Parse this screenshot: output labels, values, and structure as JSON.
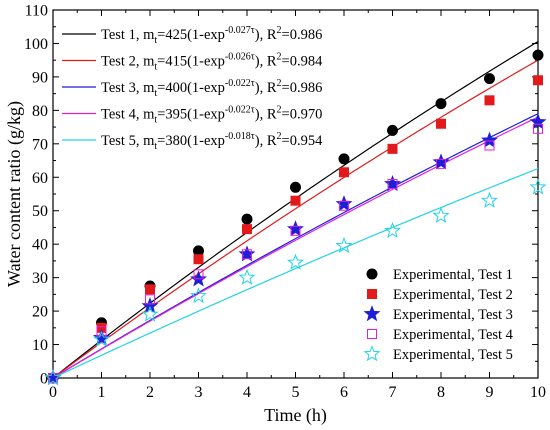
{
  "chart_data": {
    "type": "scatter",
    "xlabel": "Time (h)",
    "ylabel": "Water content ratio (g/kg)",
    "xlim": [
      0,
      10
    ],
    "ylim": [
      0,
      110
    ],
    "x_ticks": [
      "0",
      "1",
      "2",
      "3",
      "4",
      "5",
      "6",
      "7",
      "8",
      "9",
      "10"
    ],
    "y_ticks": [
      "0",
      "10",
      "20",
      "30",
      "40",
      "50",
      "60",
      "70",
      "80",
      "90",
      "100",
      "110"
    ],
    "grid": false,
    "fit_legend_position": "top-left",
    "marker_legend_position": "bottom-right",
    "fit_lines": [
      {
        "label_main": "Test 1, m",
        "label_sub": "t",
        "label_eq": "=425(1-exp",
        "label_exp": "-0.027τ",
        "label_r2": "), R",
        "label_r2sup": "2",
        "label_r2val": "=0.986",
        "color": "#000000",
        "A": 425,
        "k": 0.027
      },
      {
        "label_main": "Test 2, m",
        "label_sub": "t",
        "label_eq": "=415(1-exp",
        "label_exp": "-0.026τ",
        "label_r2": "), R",
        "label_r2sup": "2",
        "label_r2val": "=0.984",
        "color": "#e31a1c",
        "A": 415,
        "k": 0.026
      },
      {
        "label_main": "Test 3, m",
        "label_sub": "t",
        "label_eq": "=400(1-exp",
        "label_exp": "-0.022τ",
        "label_r2": "), R",
        "label_r2sup": "2",
        "label_r2val": "=0.986",
        "color": "#1f1fd6",
        "A": 400,
        "k": 0.022
      },
      {
        "label_main": "Test 4, m",
        "label_sub": "t",
        "label_eq": "=395(1-exp",
        "label_exp": "-0.022τ",
        "label_r2": "), R",
        "label_r2sup": "2",
        "label_r2val": "=0.970",
        "color": "#e020e0",
        "A": 395,
        "k": 0.022
      },
      {
        "label_main": "Test 5, m",
        "label_sub": "t",
        "label_eq": "=380(1-exp",
        "label_exp": "-0.018τ",
        "label_r2": "), R",
        "label_r2sup": "2",
        "label_r2val": "=0.954",
        "color": "#22d3e6",
        "A": 380,
        "k": 0.018
      }
    ],
    "x": [
      0,
      1,
      2,
      3,
      4,
      5,
      6,
      7,
      8,
      9,
      10
    ],
    "series": [
      {
        "name": "Experimental, Test 1",
        "marker": "circle",
        "color": "#000000",
        "filled": true,
        "values": [
          0,
          16.5,
          27.5,
          38,
          47.5,
          57,
          65.5,
          74,
          82,
          89.5,
          96.5
        ]
      },
      {
        "name": "Experimental, Test 2",
        "marker": "square",
        "color": "#e31a1c",
        "filled": true,
        "values": [
          0,
          15,
          26.5,
          35.5,
          44.5,
          53,
          61.5,
          68.5,
          76,
          83,
          89
        ]
      },
      {
        "name": "Experimental, Test 3",
        "marker": "star",
        "color": "#1f1fd6",
        "filled": true,
        "values": [
          0,
          12,
          21.5,
          29.5,
          37,
          44.5,
          52,
          58,
          64.5,
          71,
          76.5
        ]
      },
      {
        "name": "Experimental, Test 4",
        "marker": "square",
        "color": "#e020e0",
        "filled": false,
        "values": [
          0,
          14,
          23.5,
          31,
          37,
          44,
          51.5,
          58,
          64,
          69.5,
          74.5
        ]
      },
      {
        "name": "Experimental, Test 5",
        "marker": "star",
        "color": "#22d3e6",
        "filled": false,
        "values": [
          0,
          11.5,
          19,
          24.5,
          30,
          34.5,
          39.5,
          44,
          48.5,
          53,
          57
        ]
      }
    ]
  }
}
